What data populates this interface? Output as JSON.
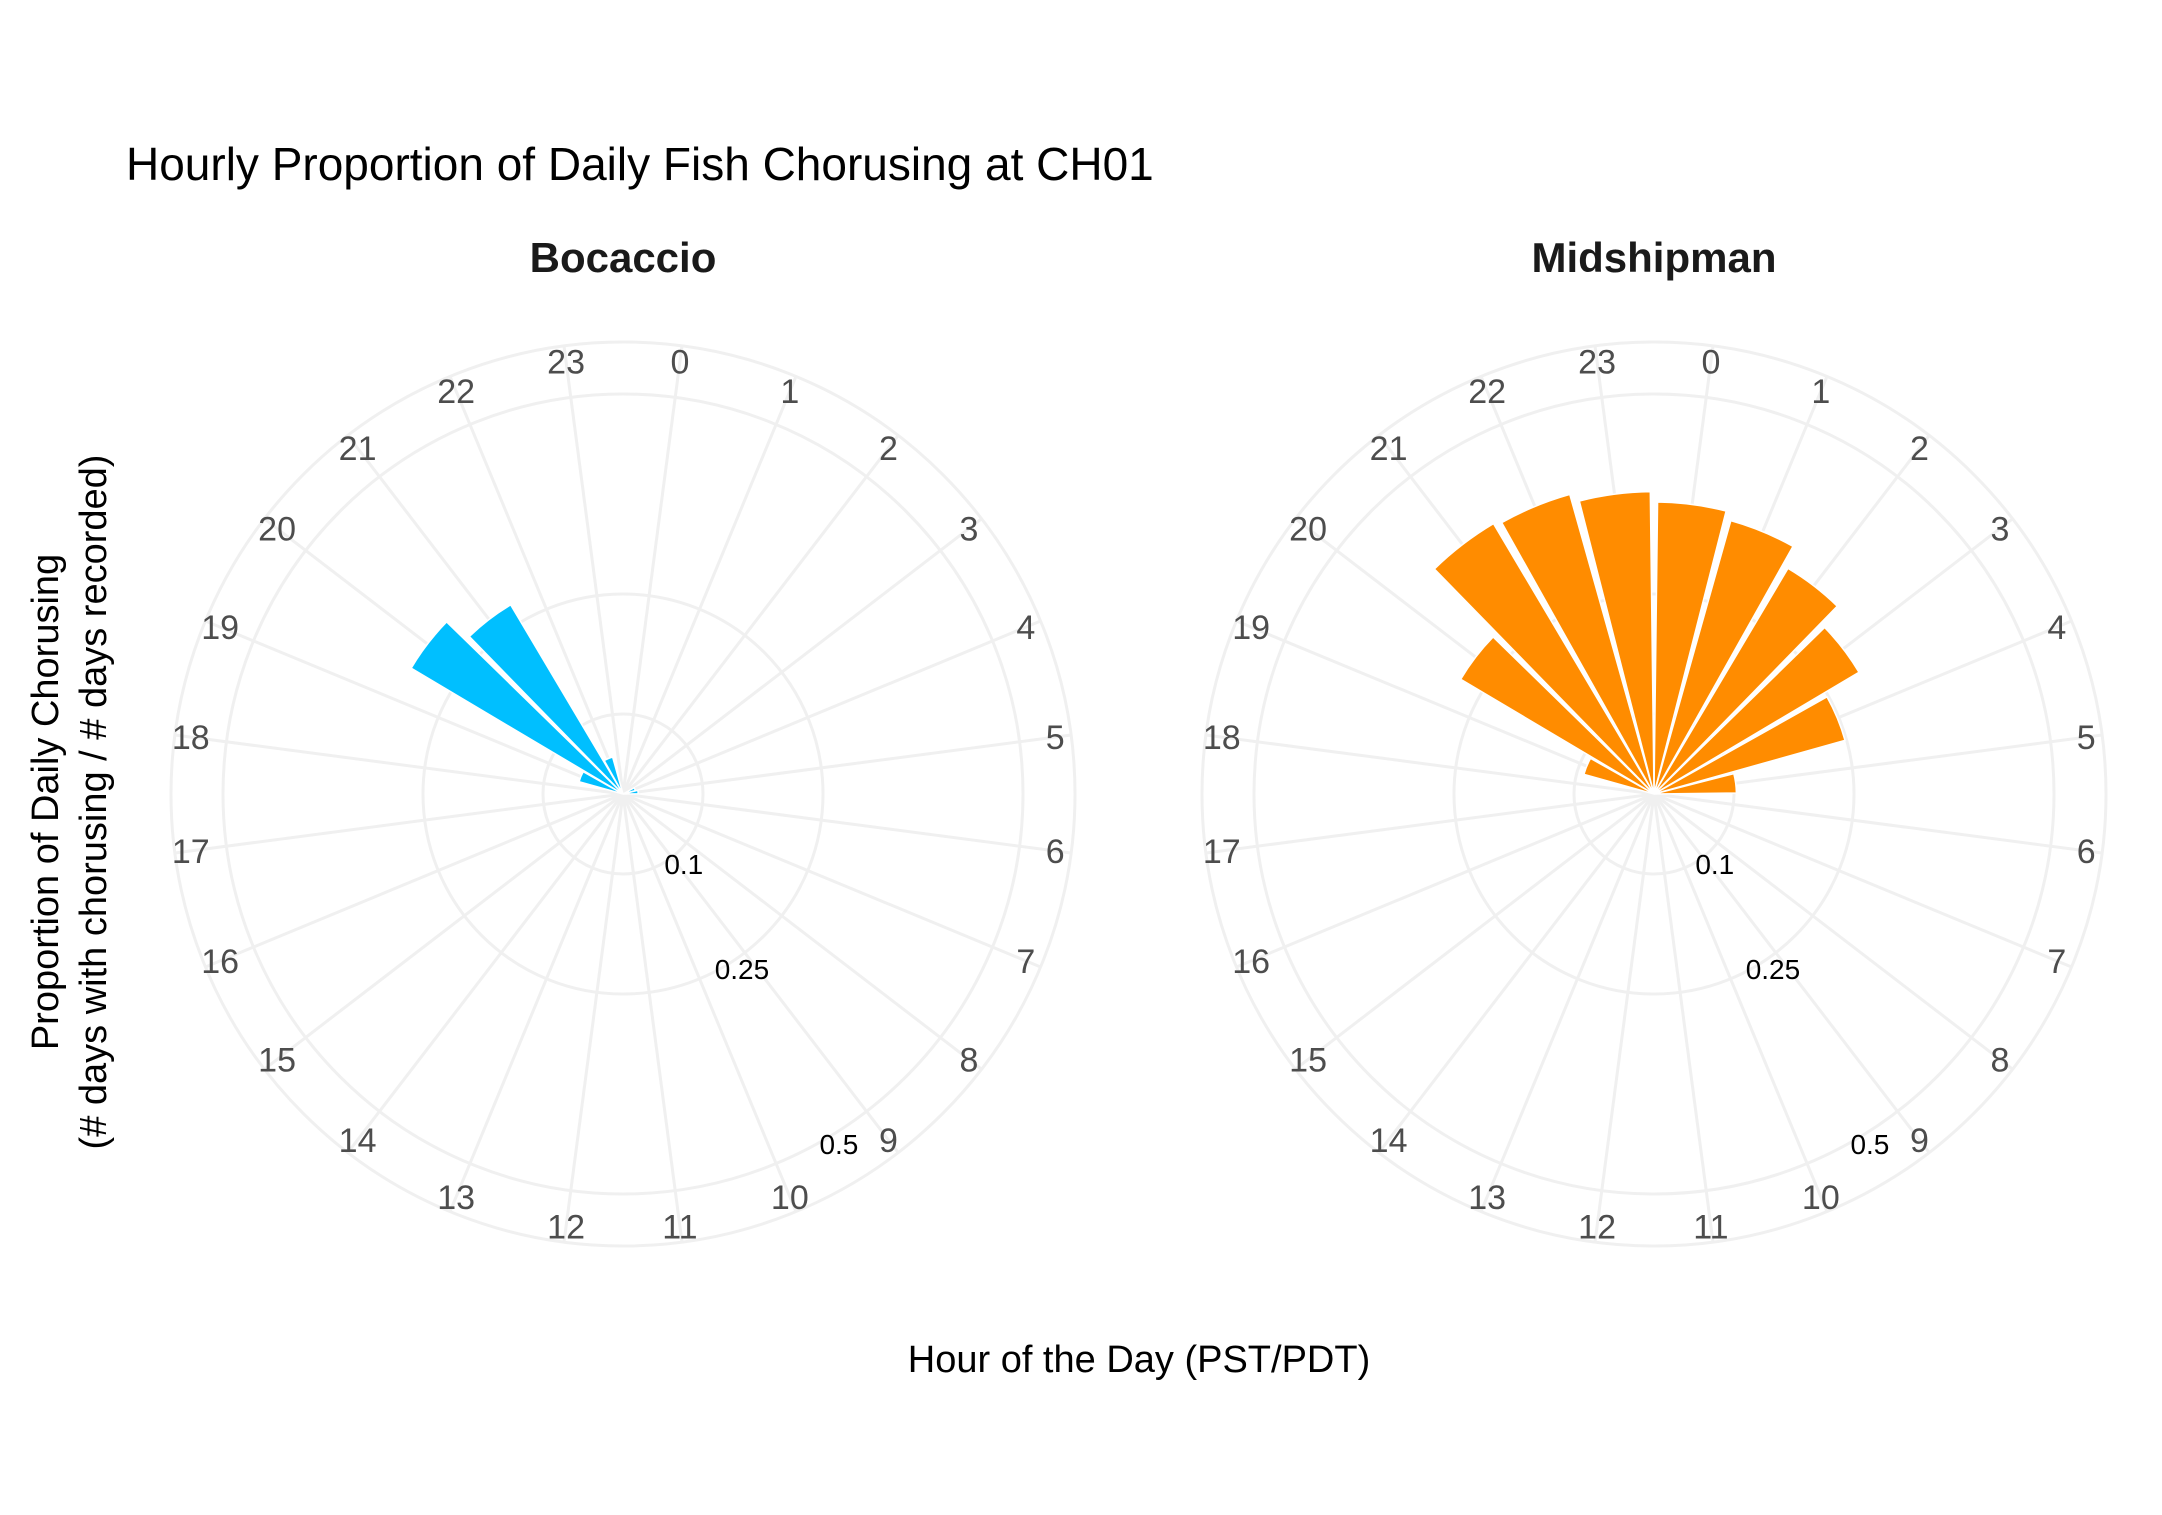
{
  "chart_data": {
    "type": "bar",
    "polar": true,
    "title": "Hourly Proportion of Daily Fish Chorusing at CH01",
    "xlabel": "Hour of the Day (PST/PDT)",
    "ylabel": [
      "Proportion of Daily Chorusing",
      "(# days with chorusing / # days recorded)"
    ],
    "categories": [
      "0",
      "1",
      "2",
      "3",
      "4",
      "5",
      "6",
      "7",
      "8",
      "9",
      "10",
      "11",
      "12",
      "13",
      "14",
      "15",
      "16",
      "17",
      "18",
      "19",
      "20",
      "21",
      "22",
      "23"
    ],
    "radial_ticks": [
      "0.1",
      "0.25",
      "0.5"
    ],
    "radial_tick_values": [
      0.1,
      0.25,
      0.5
    ],
    "ylim": [
      0,
      0.565
    ],
    "grid": true,
    "facets": [
      {
        "name": "Bocaccio",
        "color": "#00BFFF",
        "values": [
          0,
          0,
          0,
          0,
          0.016,
          0.019,
          0,
          0,
          0,
          0,
          0,
          0,
          0,
          0,
          0,
          0,
          0,
          0,
          0,
          0.057,
          0.308,
          0.275,
          0.048,
          0
        ]
      },
      {
        "name": "Midshipman",
        "color": "#FF8C00",
        "values": [
          0.365,
          0.355,
          0.328,
          0.298,
          0.248,
          0.103,
          0,
          0,
          0,
          0,
          0,
          0,
          0,
          0,
          0,
          0,
          0,
          0,
          0,
          0.091,
          0.281,
          0.393,
          0.389,
          0.378
        ]
      }
    ]
  }
}
